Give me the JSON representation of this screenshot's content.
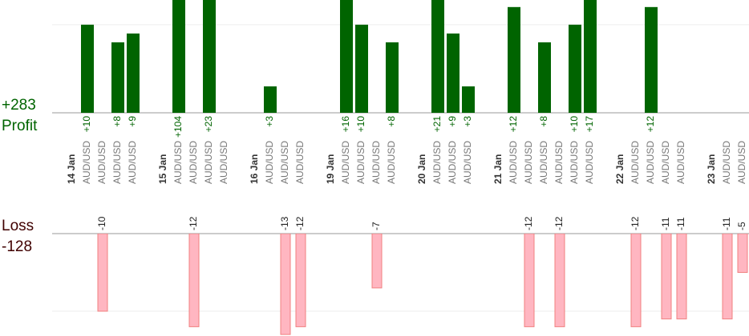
{
  "chart_data": {
    "type": "bar",
    "profit_total": {
      "value": 283,
      "label": "+283"
    },
    "profit_label": "Profit",
    "loss_label": "Loss",
    "loss_total": -128,
    "profit_color": "#006400",
    "loss_color": "#ffb6c1",
    "ylim": [
      0,
      12.8
    ],
    "yticks": [
      0,
      10
    ],
    "y2lim": [
      0,
      -12
    ],
    "y2ticks": [
      0,
      -10
    ],
    "grid": true,
    "days": [
      {
        "date": "14 Jan",
        "trades": [
          {
            "pair": "AUD/USD",
            "value": 10,
            "value_label": "+10"
          },
          {
            "pair": "AUD/USD",
            "value": -10
          },
          {
            "pair": "AUD/USD",
            "value": 8,
            "value_label": "+8"
          },
          {
            "pair": "AUD/USD",
            "value": 9,
            "value_label": "+9"
          }
        ]
      },
      {
        "date": "15 Jan",
        "trades": [
          {
            "pair": "AUD/USD",
            "value": 104,
            "value_label": "+104"
          },
          {
            "pair": "AUD/USD",
            "value": -12
          },
          {
            "pair": "AUD/USD",
            "value": 23,
            "value_label": "+23"
          },
          {
            "pair": "AUD/USD",
            "value": null
          }
        ]
      },
      {
        "date": "16 Jan",
        "trades": [
          {
            "pair": "AUD/USD",
            "value": 3,
            "value_label": "+3"
          },
          {
            "pair": "AUD/USD",
            "value": -13
          },
          {
            "pair": "AUD/USD",
            "value": -12
          }
        ]
      },
      {
        "date": "19 Jan",
        "trades": [
          {
            "pair": "AUD/USD",
            "value": 16,
            "value_label": "+16"
          },
          {
            "pair": "AUD/USD",
            "value": 10,
            "value_label": "+10"
          },
          {
            "pair": "AUD/USD",
            "value": -7
          },
          {
            "pair": "AUD/USD",
            "value": 8,
            "value_label": "+8"
          }
        ]
      },
      {
        "date": "20 Jan",
        "trades": [
          {
            "pair": "AUD/USD",
            "value": 21,
            "value_label": "+21"
          },
          {
            "pair": "AUD/USD",
            "value": 9,
            "value_label": "+9"
          },
          {
            "pair": "AUD/USD",
            "value": 3,
            "value_label": "+3"
          }
        ]
      },
      {
        "date": "21 Jan",
        "trades": [
          {
            "pair": "AUD/USD",
            "value": 12,
            "value_label": "+12"
          },
          {
            "pair": "AUD/USD",
            "value": -12
          },
          {
            "pair": "AUD/USD",
            "value": 8,
            "value_label": "+8"
          },
          {
            "pair": "AUD/USD",
            "value": -12
          },
          {
            "pair": "AUD/USD",
            "value": 10,
            "value_label": "+10"
          },
          {
            "pair": "AUD/USD",
            "value": 17,
            "value_label": "+17"
          }
        ]
      },
      {
        "date": "22 Jan",
        "trades": [
          {
            "pair": "AUD/USD",
            "value": -12
          },
          {
            "pair": "AUD/USD",
            "value": 12,
            "value_label": "+12"
          },
          {
            "pair": "AUD/USD",
            "value": -11
          },
          {
            "pair": "AUD/USD",
            "value": -11
          }
        ]
      },
      {
        "date": "23 Jan",
        "trades": [
          {
            "pair": "AUD/USD",
            "value": -11
          },
          {
            "pair": "AUD/USD",
            "value": -5
          }
        ]
      }
    ]
  }
}
